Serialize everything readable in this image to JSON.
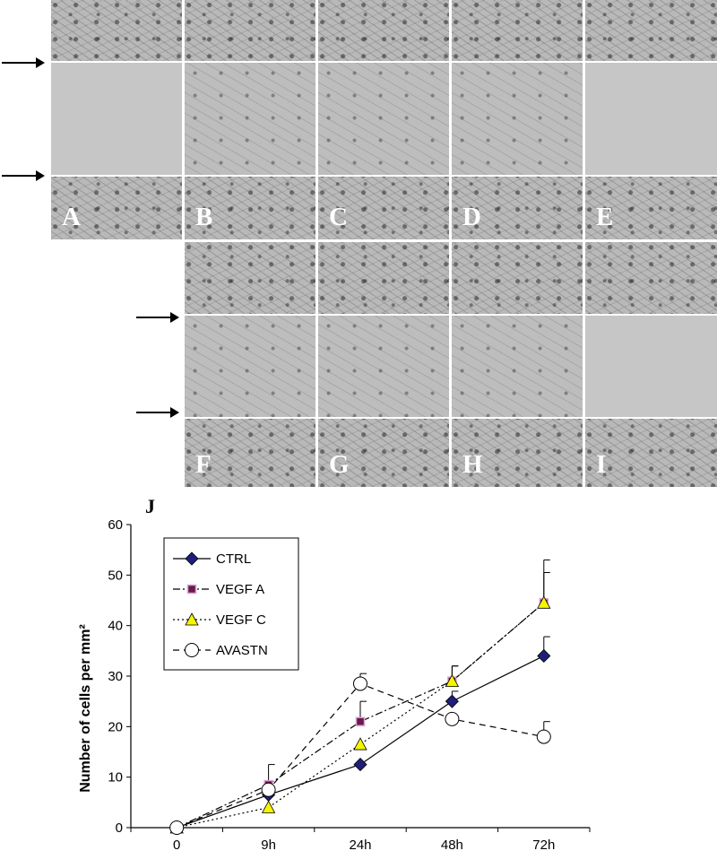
{
  "panels": {
    "row1": [
      {
        "label": "A",
        "gap_state": "empty"
      },
      {
        "label": "B",
        "gap_state": "cells"
      },
      {
        "label": "C",
        "gap_state": "cells"
      },
      {
        "label": "D",
        "gap_state": "cells"
      },
      {
        "label": "E",
        "gap_state": "sparse"
      }
    ],
    "row2": [
      {
        "label": "F",
        "gap_state": "cells"
      },
      {
        "label": "G",
        "gap_state": "cells"
      },
      {
        "label": "H",
        "gap_state": "cells"
      },
      {
        "label": "I",
        "gap_state": "sparse"
      }
    ]
  },
  "chart_data": {
    "type": "line",
    "panel_label": "J",
    "categories": [
      "0",
      "9h",
      "24h",
      "48h",
      "72h"
    ],
    "xlabel": "",
    "ylabel": "Number of cells per mm²",
    "ylim": [
      0,
      60
    ],
    "yticks": [
      0,
      10,
      20,
      30,
      40,
      50,
      60
    ],
    "grid": false,
    "legend_position": "top-left",
    "series": [
      {
        "name": "CTRL",
        "values": [
          0,
          6.5,
          12.5,
          25,
          34
        ],
        "errors": [
          0,
          0,
          0,
          2,
          3.8
        ],
        "color": "#1f1f7a",
        "marker": "diamond",
        "line": "solid"
      },
      {
        "name": "VEGF A",
        "values": [
          0,
          8.5,
          21,
          29,
          44.5
        ],
        "errors": [
          0,
          4,
          4,
          3,
          6
        ],
        "color": "#6a1a4a",
        "marker": "square",
        "line": "dashed"
      },
      {
        "name": "VEGF C",
        "values": [
          0,
          4,
          16.5,
          29,
          44.5
        ],
        "errors": [
          0,
          0,
          0,
          3,
          8.5
        ],
        "color": "#f5f500",
        "marker": "triangle",
        "line": "dotted"
      },
      {
        "name": "AVASTN",
        "values": [
          0,
          7.5,
          28.5,
          21.5,
          18
        ],
        "errors": [
          0,
          0,
          2,
          0,
          3
        ],
        "color": "#ffffff",
        "marker": "circle",
        "line": "dashed"
      }
    ]
  }
}
